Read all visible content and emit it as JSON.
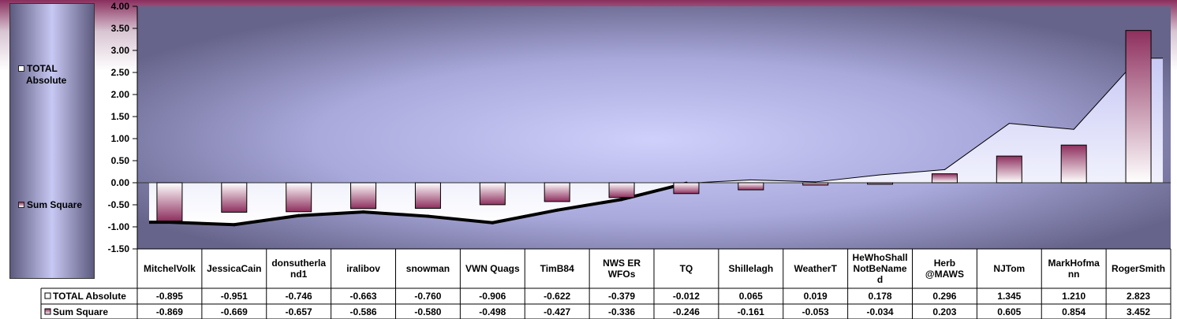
{
  "chart_data": {
    "type": "bar",
    "categories": [
      "MitchelVolk",
      "JessicaCain",
      "donsutherland1",
      "iralibov",
      "snowman",
      "VWN Quags",
      "TimB84",
      "NWS ER WFOs",
      "TQ",
      "Shillelagh",
      "WeatherT",
      "HeWhoShallNotBeNamed",
      "Herb @MAWS",
      "NJTom",
      "MarkHofmann",
      "RogerSmith"
    ],
    "category_lines": [
      [
        "MitchelVolk"
      ],
      [
        "JessicaCain"
      ],
      [
        "donsutherla",
        "nd1"
      ],
      [
        "iralibov"
      ],
      [
        "snowman"
      ],
      [
        "VWN Quags"
      ],
      [
        "TimB84"
      ],
      [
        "NWS ER",
        "WFOs"
      ],
      [
        "TQ"
      ],
      [
        "Shillelagh"
      ],
      [
        "WeatherT"
      ],
      [
        "HeWhoShall",
        "NotBeName",
        "d"
      ],
      [
        "Herb",
        "@MAWS"
      ],
      [
        "NJTom"
      ],
      [
        "MarkHofma",
        "nn"
      ],
      [
        "RogerSmith"
      ]
    ],
    "series": [
      {
        "name": "TOTAL Absolute",
        "kind": "area",
        "values": [
          -0.895,
          -0.951,
          -0.746,
          -0.663,
          -0.76,
          -0.906,
          -0.622,
          -0.379,
          -0.012,
          0.065,
          0.019,
          0.178,
          0.296,
          1.345,
          1.21,
          2.823
        ],
        "labels": [
          "-0.895",
          "-0.951",
          "-0.746",
          "-0.663",
          "-0.760",
          "-0.906",
          "-0.622",
          "-0.379",
          "-0.012",
          "0.065",
          "0.019",
          "0.178",
          "0.296",
          "1.345",
          "1.210",
          "2.823"
        ]
      },
      {
        "name": "Sum Square",
        "kind": "bar",
        "values": [
          -0.869,
          -0.669,
          -0.657,
          -0.586,
          -0.58,
          -0.498,
          -0.427,
          -0.336,
          -0.246,
          -0.161,
          -0.053,
          -0.034,
          0.203,
          0.605,
          0.854,
          3.452
        ],
        "labels": [
          "-0.869",
          "-0.669",
          "-0.657",
          "-0.586",
          "-0.580",
          "-0.498",
          "-0.427",
          "-0.336",
          "-0.246",
          "-0.161",
          "-0.053",
          "-0.034",
          "0.203",
          "0.605",
          "0.854",
          "3.452"
        ]
      }
    ],
    "yticks": [
      "4.00",
      "3.50",
      "3.00",
      "2.50",
      "2.00",
      "1.50",
      "1.00",
      "0.50",
      "0.00",
      "-0.50",
      "-1.00",
      "-1.50"
    ],
    "ylim": [
      -1.5,
      4.0
    ],
    "title": "",
    "xlabel": "",
    "ylabel": "",
    "legend_position": "left",
    "data_table": true,
    "colors": {
      "bar_top": "#8e2f5e",
      "bar_bottom": "#ffffff",
      "area_fill_top": "#c3c4f2",
      "area_fill_bottom": "#ffffff",
      "zero_line": "#000000",
      "plot_bg_center": "#c7c8f6",
      "plot_bg_edge": "#6f6d92"
    }
  },
  "legend": {
    "total_label_line1": "TOTAL",
    "total_label_line2": "Absolute",
    "sum_label": "Sum Square"
  },
  "table": {
    "row1_label": "TOTAL Absolute",
    "row2_label": "Sum Square"
  }
}
